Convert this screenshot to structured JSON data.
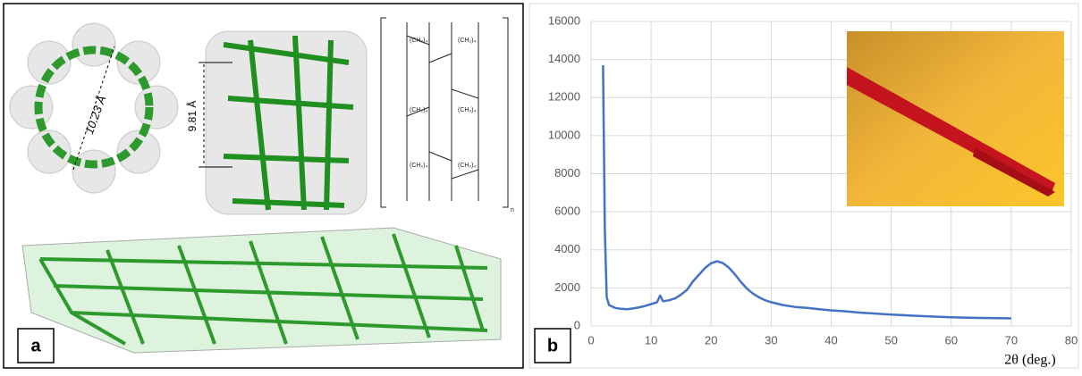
{
  "panel_a": {
    "label": "a",
    "annotations": [
      "10.23 Å",
      "9.81 Å"
    ],
    "structure_labels": [
      "(CH₂)₄",
      "(CH₂)₄",
      "(CH₂)₄",
      "(CH₂)₄",
      "(CH₂)₄",
      "(CH₂)₄"
    ],
    "structure_subscript": "n"
  },
  "chart_data": {
    "type": "line",
    "panel_label": "b",
    "x_label": "2θ (deg.)",
    "x": [
      2,
      2.3,
      2.6,
      3,
      4,
      5,
      6,
      7,
      8,
      9,
      10,
      11,
      11.5,
      12,
      13,
      14,
      15,
      16,
      17,
      18,
      19,
      20,
      21,
      22,
      23,
      24,
      25,
      26,
      27,
      28,
      29,
      30,
      32,
      34,
      36,
      38,
      40,
      42,
      45,
      48,
      50,
      52,
      55,
      58,
      60,
      62,
      65,
      68,
      70
    ],
    "series": [
      {
        "color": "#4472c4",
        "values": [
          13700,
          5000,
          1500,
          1100,
          950,
          900,
          880,
          920,
          980,
          1050,
          1150,
          1250,
          1600,
          1300,
          1350,
          1450,
          1650,
          1900,
          2350,
          2700,
          3050,
          3300,
          3400,
          3300,
          3050,
          2700,
          2300,
          1950,
          1700,
          1500,
          1350,
          1250,
          1100,
          1000,
          950,
          880,
          820,
          780,
          700,
          640,
          600,
          570,
          520,
          480,
          460,
          440,
          420,
          410,
          400
        ]
      }
    ],
    "xlim": [
      0,
      80
    ],
    "xticks": [
      0,
      10,
      20,
      30,
      40,
      50,
      60,
      70,
      80
    ],
    "ylim": [
      0,
      16000
    ],
    "yticks": [
      0,
      2000,
      4000,
      6000,
      8000,
      10000,
      12000,
      14000,
      16000
    ],
    "grid": true
  }
}
